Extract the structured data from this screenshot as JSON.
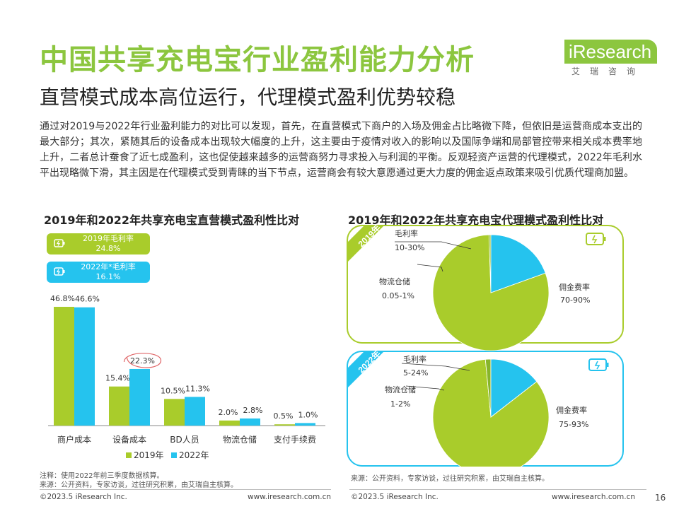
{
  "header": {
    "title": "中国共享充电宝行业盈利能力分析",
    "subtitle": "直营模式成本高位运行，代理模式盈利优势较稳"
  },
  "logo": {
    "brand": "iResearch",
    "cn": "艾瑞咨询"
  },
  "body_text": "通过对2019与2022年行业盈利能力的对比可以发现，首先，在直营模式下商户的入场及佣金占比略微下降，但依旧是运营商成本支出的最大部分；其次，紧随其后的设备成本出现较大幅度的上升，这主要由于疫情对收入的影响以及国际争端和局部管控带来相关成本费率地上升，二者总计蚕食了近七成盈利，这也促使越来越多的运营商努力寻求投入与利润的平衡。反观轻资产运营的代理模式，2022年毛利水平出现略微下滑，其主因是在代理模式受到青睐的当下节点，运营商会有较大意愿通过更大力度的佣金返点政策来吸引优质代理商加盟。",
  "colors": {
    "green": "#a9cc2b",
    "blue": "#25c3ee",
    "title_green": "#8cc63f"
  },
  "chart_data": [
    {
      "type": "bar",
      "title": "2019年和2022年共享充电宝直营模式盈利性比对",
      "categories": [
        "商户成本",
        "设备成本",
        "BD人员",
        "物流仓储",
        "支付手续费"
      ],
      "series": [
        {
          "name": "2019年",
          "values": [
            46.8,
            15.4,
            10.5,
            2.0,
            0.5
          ],
          "labels": [
            "46.8%",
            "15.4%",
            "10.5%",
            "2.0%",
            "0.5%"
          ]
        },
        {
          "name": "2022年",
          "values": [
            46.6,
            22.3,
            11.3,
            2.8,
            1.0
          ],
          "labels": [
            "46.6%",
            "22.3%",
            "11.3%",
            "2.8%",
            "1.0%"
          ]
        }
      ],
      "ylim": [
        0,
        50
      ],
      "callouts": [
        {
          "line1": "2019年毛利率",
          "line2": "24.8%"
        },
        {
          "line1": "2022年*毛利率",
          "line2": "16.1%"
        }
      ],
      "note": "注释：使用2022年前三季度数据核算。",
      "source": "来源：公开资料，专家访谈，过往研究积累，由艾瑞自主核算。"
    },
    {
      "type": "pie",
      "title": "2019年和2022年共享充电宝代理模式盈利性比对",
      "pies": [
        {
          "year": "2019年",
          "slices": [
            {
              "name": "佣金费率",
              "range": "70-90%",
              "value": 80
            },
            {
              "name": "物流仓储",
              "range": "0.05-1%",
              "value": 0.5
            },
            {
              "name": "毛利率",
              "range": "10-30%",
              "value": 19.5
            }
          ]
        },
        {
          "year": "2022年",
          "slices": [
            {
              "name": "佣金费率",
              "range": "75-93%",
              "value": 84
            },
            {
              "name": "物流仓储",
              "range": "1-2%",
              "value": 1.5
            },
            {
              "name": "毛利率",
              "range": "5-24%",
              "value": 14.5
            }
          ]
        }
      ],
      "source": "来源：公开资料，专家访谈，过往研究积累，由艾瑞自主核算。"
    }
  ],
  "footer": {
    "left_copyright": "©2023.5 iResearch Inc.",
    "left_url": "www.iresearch.com.cn",
    "right_copyright": "©2023.5 iResearch Inc.",
    "right_url": "www.iresearch.com.cn",
    "page_number": "16"
  }
}
